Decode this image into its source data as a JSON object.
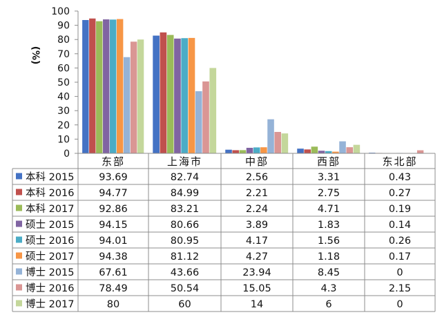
{
  "chart_data": {
    "type": "bar",
    "ylabel": "(%)",
    "ylim": [
      0,
      100
    ],
    "yticks": [
      0,
      10,
      20,
      30,
      40,
      50,
      60,
      70,
      80,
      90,
      100
    ],
    "grid": false,
    "legend": "data-table-left",
    "categories": [
      "东部",
      "上海市",
      "中部",
      "西部",
      "东北部"
    ],
    "series": [
      {
        "name": "本科 2015",
        "color": "#4472C4",
        "values": [
          93.69,
          82.74,
          2.56,
          3.31,
          0.43
        ],
        "labels": [
          "93.69",
          "82.74",
          "2.56",
          "3.31",
          "0.43"
        ]
      },
      {
        "name": "本科 2016",
        "color": "#C0504D",
        "values": [
          94.77,
          84.99,
          2.21,
          2.75,
          0.27
        ],
        "labels": [
          "94.77",
          "84.99",
          "2.21",
          "2.75",
          "0.27"
        ]
      },
      {
        "name": "本科 2017",
        "color": "#9BBB59",
        "values": [
          92.86,
          83.21,
          2.24,
          4.71,
          0.19
        ],
        "labels": [
          "92.86",
          "83.21",
          "2.24",
          "4.71",
          "0.19"
        ]
      },
      {
        "name": "硕士 2015",
        "color": "#8064A2",
        "values": [
          94.15,
          80.66,
          3.89,
          1.83,
          0.14
        ],
        "labels": [
          "94.15",
          "80.66",
          "3.89",
          "1.83",
          "0.14"
        ]
      },
      {
        "name": "硕士 2016",
        "color": "#4BACC6",
        "values": [
          94.01,
          80.95,
          4.17,
          1.56,
          0.26
        ],
        "labels": [
          "94.01",
          "80.95",
          "4.17",
          "1.56",
          "0.26"
        ]
      },
      {
        "name": "硕士 2017",
        "color": "#F79646",
        "values": [
          94.38,
          81.12,
          4.27,
          1.18,
          0.17
        ],
        "labels": [
          "94.38",
          "81.12",
          "4.27",
          "1.18",
          "0.17"
        ]
      },
      {
        "name": "博士 2015",
        "color": "#95B3D7",
        "values": [
          67.61,
          43.66,
          23.94,
          8.45,
          0
        ],
        "labels": [
          "67.61",
          "43.66",
          "23.94",
          "8.45",
          "0"
        ]
      },
      {
        "name": "博士 2016",
        "color": "#DA9694",
        "values": [
          78.49,
          50.54,
          15.05,
          4.3,
          2.15
        ],
        "labels": [
          "78.49",
          "50.54",
          "15.05",
          "4.3",
          "2.15"
        ]
      },
      {
        "name": "博士 2017",
        "color": "#C4D79B",
        "values": [
          80,
          60,
          14,
          6,
          0
        ],
        "labels": [
          "80",
          "60",
          "14",
          "6",
          "0"
        ]
      }
    ]
  }
}
